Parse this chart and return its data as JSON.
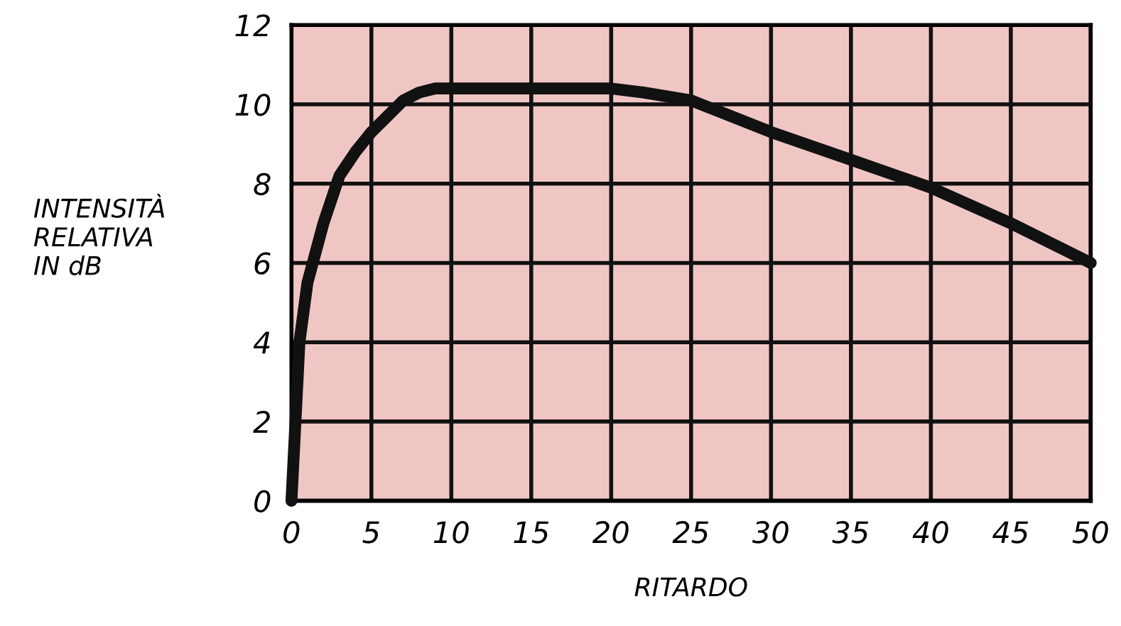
{
  "chart_data": {
    "type": "line",
    "xlabel": "RITARDO",
    "ylabel": "INTENSITÀ\nRELATIVA\nIN dB",
    "x": [
      0,
      0.5,
      1,
      2,
      3,
      4,
      5,
      6,
      7,
      8,
      9,
      10,
      15,
      20,
      22,
      25,
      30,
      35,
      40,
      45,
      50
    ],
    "series": [
      {
        "color": "#111111",
        "values": [
          0,
          4,
          5.5,
          7,
          8.2,
          8.8,
          9.3,
          9.7,
          10.1,
          10.3,
          10.4,
          10.4,
          10.4,
          10.4,
          10.3,
          10.1,
          9.3,
          8.6,
          7.9,
          7,
          6
        ]
      }
    ],
    "xlim": [
      0,
      50
    ],
    "ylim": [
      0,
      12
    ],
    "xticks": [
      0,
      5,
      10,
      15,
      20,
      25,
      30,
      35,
      40,
      45,
      50
    ],
    "yticks": [
      0,
      2,
      4,
      6,
      8,
      10,
      12
    ],
    "grid": true,
    "marker": "none",
    "line_style": "solid"
  }
}
